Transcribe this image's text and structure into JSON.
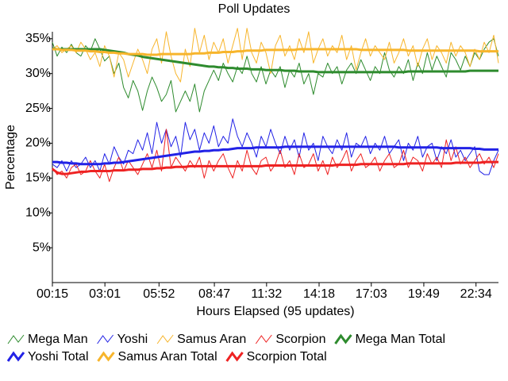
{
  "chart_data": {
    "type": "line",
    "title": "Poll Updates",
    "x_label": "Hours Elapsed (95 updates)",
    "y_label": "Percentage",
    "legend": "bottom",
    "x": [
      15,
      30,
      45,
      60,
      75,
      90,
      105,
      120,
      135,
      150,
      165,
      180,
      195,
      210,
      225,
      240,
      255,
      270,
      285,
      300,
      315,
      330,
      345,
      360,
      375,
      390,
      405,
      420,
      435,
      450,
      465,
      480,
      495,
      510,
      525,
      540,
      555,
      570,
      585,
      600,
      615,
      630,
      645,
      660,
      675,
      690,
      705,
      720,
      735,
      750,
      765,
      780,
      795,
      810,
      825,
      840,
      855,
      870,
      885,
      900,
      915,
      930,
      945,
      960,
      975,
      990,
      1005,
      1020,
      1035,
      1050,
      1065,
      1080,
      1095,
      1110,
      1125,
      1140,
      1155,
      1170,
      1185,
      1200,
      1215,
      1230,
      1245,
      1260,
      1275,
      1290,
      1305,
      1320,
      1335,
      1350,
      1365,
      1380,
      1395,
      1410,
      1425
    ],
    "xlim": [
      15,
      1425
    ],
    "xticks": [
      {
        "value": 15,
        "label": "00:15"
      },
      {
        "value": 181,
        "label": "03:01"
      },
      {
        "value": 352,
        "label": "05:52"
      },
      {
        "value": 527,
        "label": "08:47"
      },
      {
        "value": 692,
        "label": "11:32"
      },
      {
        "value": 858,
        "label": "14:18"
      },
      {
        "value": 1023,
        "label": "17:03"
      },
      {
        "value": 1189,
        "label": "19:49"
      },
      {
        "value": 1354,
        "label": "22:34"
      }
    ],
    "ylim": [
      0,
      36
    ],
    "yticks": [
      {
        "value": 5,
        "label": "5%"
      },
      {
        "value": 10,
        "label": "10%"
      },
      {
        "value": 15,
        "label": "15%"
      },
      {
        "value": 20,
        "label": "20%"
      },
      {
        "value": 25,
        "label": "25%"
      },
      {
        "value": 30,
        "label": "30%"
      },
      {
        "value": 35,
        "label": "35%"
      }
    ],
    "series": [
      {
        "name": "Mega Man",
        "color": "#2e8b2e",
        "line_width": 1,
        "values": [
          34.5,
          32.5,
          33.8,
          33.0,
          34.2,
          33.0,
          32.5,
          34.0,
          33.2,
          35.0,
          33.5,
          31.8,
          32.5,
          30.0,
          31.5,
          28.0,
          26.5,
          29.0,
          27.5,
          24.7,
          27.5,
          29.5,
          28.0,
          26.0,
          27.0,
          29.0,
          24.5,
          26.0,
          27.5,
          26.0,
          28.5,
          24.5,
          27.5,
          29.0,
          30.5,
          29.0,
          31.5,
          30.0,
          28.8,
          31.0,
          30.0,
          32.5,
          30.0,
          28.8,
          31.0,
          28.5,
          30.5,
          29.5,
          31.0,
          28.0,
          30.5,
          29.5,
          31.5,
          28.5,
          30.0,
          27.0,
          30.0,
          29.5,
          31.5,
          30.0,
          31.0,
          28.5,
          30.5,
          31.5,
          30.0,
          32.0,
          30.5,
          29.0,
          31.0,
          30.0,
          33.0,
          30.5,
          29.5,
          31.0,
          30.0,
          32.0,
          29.0,
          31.5,
          30.0,
          33.0,
          30.5,
          32.5,
          31.0,
          29.5,
          33.0,
          32.0,
          30.5,
          32.5,
          31.0,
          33.0,
          32.0,
          33.5,
          34.5,
          35.0,
          32.5
        ]
      },
      {
        "name": "Yoshi",
        "color": "#2222e6",
        "line_width": 1,
        "values": [
          17.0,
          16.5,
          17.5,
          16.0,
          17.5,
          16.5,
          17.0,
          18.0,
          16.5,
          17.5,
          16.0,
          18.5,
          17.0,
          19.5,
          18.0,
          17.0,
          19.0,
          18.5,
          20.5,
          19.0,
          21.5,
          18.5,
          23.0,
          20.0,
          22.0,
          19.5,
          21.0,
          18.0,
          23.0,
          20.5,
          22.0,
          19.0,
          21.5,
          20.0,
          22.5,
          19.5,
          21.0,
          20.0,
          23.5,
          21.0,
          19.5,
          21.5,
          20.0,
          18.0,
          21.0,
          19.5,
          22.0,
          20.0,
          18.5,
          21.0,
          19.0,
          20.5,
          18.0,
          21.5,
          19.0,
          20.0,
          17.5,
          21.0,
          19.5,
          18.5,
          20.5,
          19.0,
          21.5,
          18.0,
          20.0,
          19.5,
          21.0,
          18.5,
          20.0,
          19.0,
          21.0,
          18.5,
          19.5,
          20.5,
          17.5,
          20.0,
          19.0,
          21.0,
          18.0,
          19.5,
          20.0,
          17.5,
          19.5,
          18.5,
          20.5,
          18.0,
          19.0,
          17.5,
          18.5,
          19.5,
          16.0,
          15.5,
          15.5,
          17.5,
          19.0
        ]
      },
      {
        "name": "Samus Aran",
        "color": "#f7b52c",
        "line_width": 1,
        "values": [
          33.5,
          34.0,
          33.0,
          33.5,
          34.0,
          33.0,
          34.5,
          33.5,
          32.0,
          33.0,
          31.0,
          34.0,
          32.5,
          29.5,
          33.0,
          32.0,
          29.5,
          31.5,
          33.5,
          32.0,
          30.0,
          33.5,
          35.0,
          31.5,
          36.0,
          32.5,
          30.0,
          28.8,
          33.5,
          31.0,
          36.5,
          33.0,
          35.5,
          32.0,
          34.5,
          33.0,
          35.0,
          31.5,
          34.0,
          36.5,
          32.0,
          36.5,
          33.0,
          31.5,
          34.5,
          33.0,
          30.0,
          34.0,
          35.5,
          32.5,
          34.0,
          32.0,
          35.0,
          33.0,
          36.0,
          31.5,
          33.5,
          35.0,
          32.5,
          34.0,
          33.0,
          35.5,
          32.0,
          34.0,
          30.5,
          33.0,
          35.0,
          32.5,
          34.0,
          33.0,
          32.0,
          34.5,
          31.5,
          33.0,
          35.0,
          32.5,
          34.0,
          31.0,
          33.5,
          35.0,
          32.0,
          34.0,
          33.0,
          31.5,
          34.5,
          32.5,
          34.0,
          33.0,
          31.0,
          33.5,
          32.0,
          34.5,
          33.0,
          35.5,
          31.5
        ]
      },
      {
        "name": "Scorpion",
        "color": "#ee2222",
        "line_width": 1,
        "values": [
          16.5,
          15.5,
          16.0,
          15.0,
          16.5,
          17.0,
          15.5,
          16.0,
          17.5,
          16.0,
          15.0,
          17.0,
          14.5,
          16.5,
          18.0,
          16.0,
          17.5,
          16.5,
          15.5,
          17.0,
          18.5,
          16.5,
          19.0,
          16.0,
          22.0,
          16.5,
          18.0,
          17.0,
          16.0,
          17.5,
          16.5,
          18.0,
          15.0,
          17.5,
          16.0,
          17.5,
          18.5,
          16.5,
          15.0,
          17.5,
          16.0,
          19.0,
          16.5,
          15.5,
          17.5,
          18.0,
          16.0,
          17.0,
          19.0,
          16.5,
          17.5,
          15.5,
          18.5,
          16.5,
          17.0,
          18.5,
          16.0,
          17.5,
          15.5,
          18.0,
          16.5,
          17.5,
          19.0,
          16.0,
          17.5,
          18.5,
          16.5,
          17.0,
          18.0,
          16.0,
          17.5,
          18.5,
          16.5,
          17.0,
          19.0,
          16.5,
          18.0,
          17.5,
          16.0,
          18.5,
          17.0,
          18.0,
          16.5,
          20.5,
          17.5,
          19.5,
          17.0,
          18.0,
          16.5,
          17.5,
          18.5,
          17.0,
          18.0,
          16.5,
          18.5
        ]
      },
      {
        "name": "Mega Man Total",
        "color": "#2e8b2e",
        "line_width": 3,
        "values": [
          33.6,
          33.5,
          33.5,
          33.5,
          33.5,
          33.5,
          33.5,
          33.5,
          33.5,
          33.5,
          33.5,
          33.4,
          33.3,
          33.2,
          33.1,
          33.0,
          32.8,
          32.7,
          32.6,
          32.4,
          32.3,
          32.2,
          32.1,
          32.0,
          31.9,
          31.8,
          31.7,
          31.6,
          31.5,
          31.4,
          31.3,
          31.2,
          31.1,
          31.0,
          31.0,
          30.9,
          30.9,
          30.8,
          30.8,
          30.7,
          30.7,
          30.7,
          30.6,
          30.6,
          30.6,
          30.5,
          30.5,
          30.5,
          30.5,
          30.4,
          30.4,
          30.4,
          30.3,
          30.3,
          30.3,
          30.3,
          30.2,
          30.2,
          30.2,
          30.2,
          30.2,
          30.2,
          30.2,
          30.2,
          30.2,
          30.2,
          30.2,
          30.2,
          30.2,
          30.2,
          30.2,
          30.2,
          30.2,
          30.2,
          30.2,
          30.3,
          30.3,
          30.3,
          30.3,
          30.3,
          30.3,
          30.3,
          30.3,
          30.3,
          30.3,
          30.3,
          30.3,
          30.3,
          30.4,
          30.4,
          30.4,
          30.4,
          30.4,
          30.4,
          30.4
        ]
      },
      {
        "name": "Yoshi Total",
        "color": "#2222e6",
        "line_width": 3,
        "values": [
          17.3,
          17.3,
          17.2,
          17.2,
          17.1,
          17.1,
          17.0,
          17.0,
          17.0,
          17.0,
          17.0,
          17.1,
          17.1,
          17.2,
          17.2,
          17.3,
          17.4,
          17.5,
          17.6,
          17.7,
          17.8,
          17.9,
          18.0,
          18.1,
          18.2,
          18.3,
          18.4,
          18.5,
          18.6,
          18.7,
          18.8,
          18.8,
          18.9,
          18.9,
          19.0,
          19.0,
          19.1,
          19.1,
          19.2,
          19.3,
          19.3,
          19.3,
          19.3,
          19.4,
          19.4,
          19.4,
          19.4,
          19.4,
          19.4,
          19.5,
          19.5,
          19.5,
          19.5,
          19.5,
          19.5,
          19.5,
          19.5,
          19.5,
          19.5,
          19.5,
          19.5,
          19.5,
          19.5,
          19.5,
          19.5,
          19.5,
          19.5,
          19.5,
          19.5,
          19.5,
          19.5,
          19.5,
          19.5,
          19.4,
          19.4,
          19.4,
          19.4,
          19.4,
          19.4,
          19.4,
          19.4,
          19.4,
          19.3,
          19.3,
          19.3,
          19.3,
          19.3,
          19.3,
          19.3,
          19.2,
          19.2,
          19.1,
          19.1,
          19.1,
          19.1
        ]
      },
      {
        "name": "Samus Aran Total",
        "color": "#f7b52c",
        "line_width": 3,
        "values": [
          33.5,
          33.5,
          33.4,
          33.4,
          33.4,
          33.3,
          33.3,
          33.3,
          33.2,
          33.2,
          33.1,
          33.1,
          33.0,
          33.0,
          32.9,
          32.9,
          32.8,
          32.8,
          32.8,
          32.8,
          32.7,
          32.7,
          32.7,
          32.8,
          32.8,
          32.8,
          32.8,
          32.8,
          32.8,
          32.8,
          32.9,
          32.9,
          32.9,
          33.0,
          33.0,
          33.0,
          33.1,
          33.1,
          33.1,
          33.2,
          33.2,
          33.3,
          33.3,
          33.3,
          33.3,
          33.4,
          33.4,
          33.4,
          33.4,
          33.4,
          33.4,
          33.4,
          33.5,
          33.5,
          33.5,
          33.5,
          33.5,
          33.5,
          33.5,
          33.5,
          33.5,
          33.5,
          33.5,
          33.5,
          33.5,
          33.4,
          33.4,
          33.4,
          33.4,
          33.4,
          33.4,
          33.4,
          33.4,
          33.4,
          33.4,
          33.3,
          33.3,
          33.3,
          33.3,
          33.3,
          33.3,
          33.3,
          33.3,
          33.3,
          33.3,
          33.3,
          33.3,
          33.3,
          33.3,
          33.3,
          33.2,
          33.2,
          33.2,
          33.2,
          33.2
        ]
      },
      {
        "name": "Scorpion Total",
        "color": "#ee2222",
        "line_width": 3,
        "values": [
          16.3,
          15.8,
          15.6,
          15.6,
          15.7,
          15.8,
          15.9,
          15.9,
          16.0,
          16.0,
          16.0,
          16.0,
          16.0,
          16.1,
          16.1,
          16.1,
          16.2,
          16.2,
          16.2,
          16.3,
          16.3,
          16.3,
          16.4,
          16.4,
          16.5,
          16.5,
          16.6,
          16.6,
          16.6,
          16.7,
          16.7,
          16.7,
          16.7,
          16.7,
          16.7,
          16.7,
          16.7,
          16.7,
          16.7,
          16.7,
          16.7,
          16.7,
          16.7,
          16.7,
          16.7,
          16.8,
          16.8,
          16.8,
          16.8,
          16.8,
          16.8,
          16.8,
          16.8,
          16.8,
          16.8,
          16.8,
          16.8,
          16.8,
          16.8,
          16.8,
          16.9,
          16.9,
          16.9,
          16.9,
          16.9,
          17.0,
          17.0,
          17.0,
          17.0,
          17.0,
          17.0,
          17.0,
          17.0,
          17.0,
          17.0,
          17.1,
          17.1,
          17.1,
          17.1,
          17.1,
          17.1,
          17.1,
          17.1,
          17.1,
          17.1,
          17.2,
          17.2,
          17.2,
          17.2,
          17.2,
          17.2,
          17.3,
          17.3,
          17.3,
          17.3
        ]
      }
    ]
  }
}
